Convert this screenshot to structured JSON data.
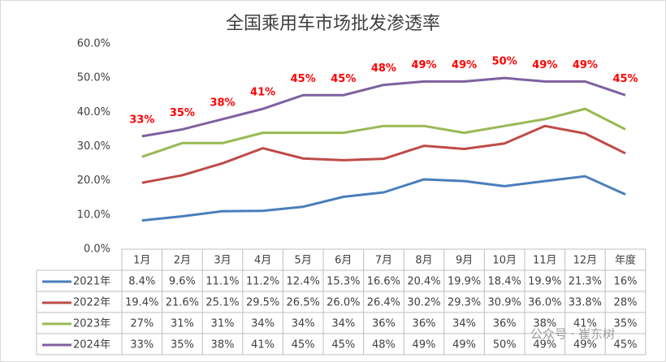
{
  "chart_data": {
    "type": "line",
    "title": "全国乘用车市场批发渗透率",
    "categories": [
      "1月",
      "2月",
      "3月",
      "4月",
      "5月",
      "6月",
      "7月",
      "8月",
      "9月",
      "10月",
      "11月",
      "12月",
      "年度"
    ],
    "ylim": [
      0,
      60
    ],
    "yticks": [
      {
        "value": 0,
        "label": "0.0%"
      },
      {
        "value": 10,
        "label": "10.0%"
      },
      {
        "value": 20,
        "label": "20.0%"
      },
      {
        "value": 30,
        "label": "30.0%"
      },
      {
        "value": 40,
        "label": "40.0%"
      },
      {
        "value": 50,
        "label": "50.0%"
      },
      {
        "value": 60,
        "label": "60.0%"
      }
    ],
    "grid": false,
    "data_label_color": "#ff0000",
    "series": [
      {
        "name": "2021年",
        "color": "#4a7ebb",
        "show_labels": false,
        "values": [
          8.4,
          9.6,
          11.1,
          11.2,
          12.4,
          15.3,
          16.6,
          20.4,
          19.9,
          18.4,
          19.9,
          21.3,
          16
        ],
        "value_labels": [
          "8.4%",
          "9.6%",
          "11.1%",
          "11.2%",
          "12.4%",
          "15.3%",
          "16.6%",
          "20.4%",
          "19.9%",
          "18.4%",
          "19.9%",
          "21.3%",
          "16%"
        ]
      },
      {
        "name": "2022年",
        "color": "#be4b48",
        "show_labels": false,
        "values": [
          19.4,
          21.6,
          25.1,
          29.5,
          26.5,
          26.0,
          26.4,
          30.2,
          29.3,
          30.9,
          36.0,
          33.8,
          28
        ],
        "value_labels": [
          "19.4%",
          "21.6%",
          "25.1%",
          "29.5%",
          "26.5%",
          "26.0%",
          "26.4%",
          "30.2%",
          "29.3%",
          "30.9%",
          "36.0%",
          "33.8%",
          "28%"
        ]
      },
      {
        "name": "2023年",
        "color": "#98b954",
        "show_labels": false,
        "values": [
          27,
          31,
          31,
          34,
          34,
          34,
          36,
          36,
          34,
          36,
          38,
          41,
          35
        ],
        "value_labels": [
          "27%",
          "31%",
          "31%",
          "34%",
          "34%",
          "34%",
          "36%",
          "36%",
          "34%",
          "36%",
          "38%",
          "41%",
          "35%"
        ]
      },
      {
        "name": "2024年",
        "color": "#7d60a0",
        "show_labels": true,
        "values": [
          33,
          35,
          38,
          41,
          45,
          45,
          48,
          49,
          49,
          50,
          49,
          49,
          45
        ],
        "value_labels": [
          "33%",
          "35%",
          "38%",
          "41%",
          "45%",
          "45%",
          "48%",
          "49%",
          "49%",
          "50%",
          "49%",
          "49%",
          "45%"
        ]
      }
    ],
    "watermark": "公众号 · 崔东树"
  }
}
